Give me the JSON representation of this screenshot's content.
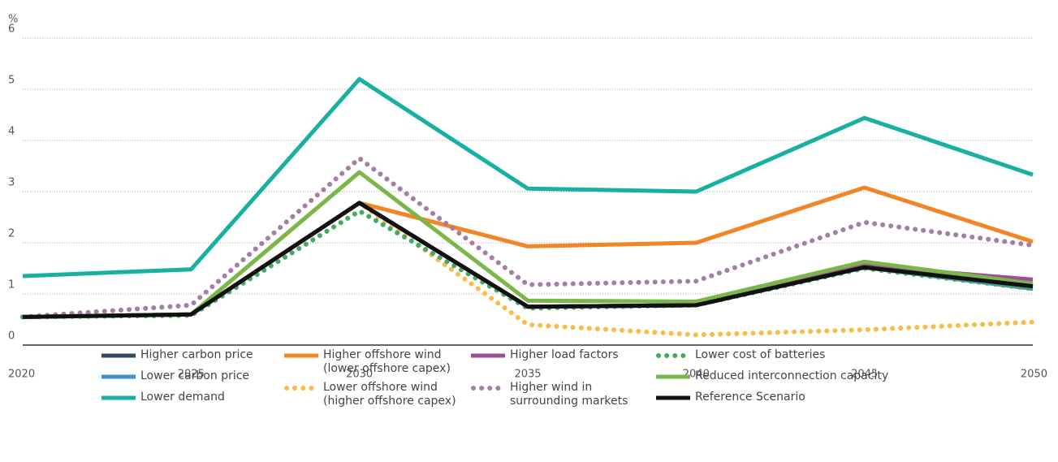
{
  "chart_data": {
    "type": "line",
    "y_label": "%",
    "x": [
      2020,
      2025,
      2030,
      2035,
      2040,
      2045,
      2050
    ],
    "xlim": [
      2020,
      2050
    ],
    "xticks": [
      2020,
      2025,
      2030,
      2035,
      2040,
      2045,
      2050
    ],
    "ylim": [
      0,
      6
    ],
    "yticks": [
      0,
      1,
      2,
      3,
      4,
      5,
      6
    ],
    "grid": true,
    "series": [
      {
        "name": "Higher carbon price",
        "color": "#34495e",
        "dash": "solid",
        "values": [
          0.55,
          0.6,
          2.78,
          0.75,
          0.78,
          1.52,
          1.15
        ]
      },
      {
        "name": "Lower carbon price",
        "color": "#3f8fce",
        "dash": "solid",
        "values": [
          0.55,
          0.6,
          2.78,
          0.75,
          0.78,
          1.52,
          1.1
        ]
      },
      {
        "name": "Lower demand",
        "color": "#17b0a1",
        "dash": "solid",
        "values": [
          1.35,
          1.48,
          5.2,
          3.06,
          3.0,
          4.44,
          3.33
        ]
      },
      {
        "name": "Higher offshore wind (lower offshore capex)",
        "color": "#f28524",
        "dash": "solid",
        "values": [
          0.55,
          0.6,
          2.78,
          1.93,
          2.0,
          3.08,
          2.02
        ]
      },
      {
        "name": "Lower offshore wind (higher offshore capex)",
        "color": "#f9bc47",
        "dash": "dotted",
        "values": [
          0.55,
          0.6,
          2.78,
          0.4,
          0.2,
          0.3,
          0.45
        ]
      },
      {
        "name": "Higher load factors",
        "color": "#9b4f96",
        "dash": "solid",
        "values": [
          0.55,
          0.6,
          2.78,
          0.75,
          0.78,
          1.55,
          1.28
        ]
      },
      {
        "name": "Higher wind in surrounding markets",
        "color": "#a57ea6",
        "dash": "dotted",
        "values": [
          0.55,
          0.78,
          3.65,
          1.18,
          1.25,
          2.4,
          1.95
        ]
      },
      {
        "name": "Lower cost of batteries",
        "color": "#45a865",
        "dash": "dotted",
        "values": [
          0.55,
          0.58,
          2.62,
          0.72,
          0.78,
          1.5,
          1.1
        ]
      },
      {
        "name": "Reduced interconnection capacity",
        "color": "#7ab648",
        "dash": "solid",
        "values": [
          0.55,
          0.6,
          3.38,
          0.87,
          0.85,
          1.63,
          1.2
        ]
      },
      {
        "name": "Reference Scenario",
        "color": "#111111",
        "dash": "solid",
        "values": [
          0.55,
          0.6,
          2.78,
          0.75,
          0.78,
          1.52,
          1.15
        ]
      }
    ]
  }
}
